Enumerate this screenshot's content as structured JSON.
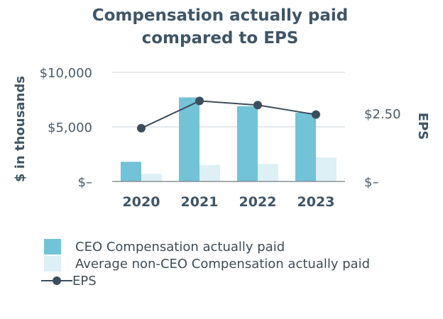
{
  "chart_data": {
    "type": "bar",
    "title_lines": [
      "Compensation actually paid",
      "compared to EPS"
    ],
    "categories": [
      "2020",
      "2021",
      "2022",
      "2023"
    ],
    "ylabel": "$ in thousands",
    "y2label": "EPS",
    "ylim": [
      0,
      10000
    ],
    "y_ticks": [
      {
        "value": 0,
        "label": "$–"
      },
      {
        "value": 5000,
        "label": "$5,000"
      },
      {
        "value": 10000,
        "label": "$10,000"
      }
    ],
    "y2lim": [
      0,
      4
    ],
    "y2_ticks": [
      {
        "value": 0,
        "label": "$–"
      },
      {
        "value": 2.5,
        "label": "$2.50"
      }
    ],
    "series": [
      {
        "name": "CEO Compensation actually paid",
        "kind": "bar",
        "color": "#72c3d7",
        "values": [
          1800,
          7700,
          6900,
          6300
        ]
      },
      {
        "name": "Average non-CEO Compensation actually paid",
        "kind": "bar",
        "color": "#dcf0f5",
        "values": [
          700,
          1500,
          1600,
          2200
        ]
      },
      {
        "name": "EPS",
        "kind": "line",
        "axis": "right",
        "color": "#3c4e5e",
        "values": [
          1.95,
          2.95,
          2.8,
          2.45
        ]
      }
    ]
  }
}
